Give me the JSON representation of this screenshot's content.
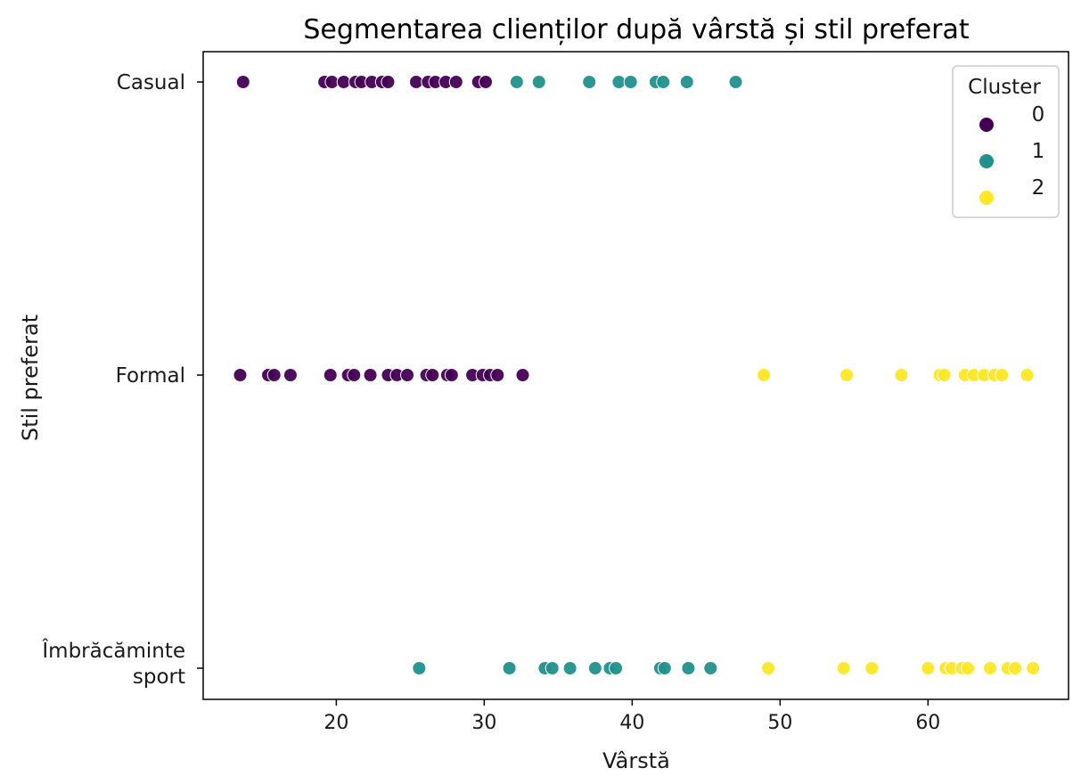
{
  "chart_data": {
    "type": "scatter",
    "title": "Segmentarea clienților după vârstă și stil preferat",
    "xlabel": "Vârstă",
    "ylabel": "Stil preferat",
    "xlim": [
      11,
      69.5
    ],
    "x_ticks": [
      20,
      30,
      40,
      50,
      60
    ],
    "categories": [
      "Casual",
      "Formal",
      "Îmbrăcăminte sport"
    ],
    "grid": false,
    "legend": {
      "title": "Cluster",
      "placement": "top-right"
    },
    "series": [
      {
        "name": "0",
        "color": "#440154",
        "points": [
          {
            "x": 13.7,
            "y": "Casual"
          },
          {
            "x": 19.2,
            "y": "Casual"
          },
          {
            "x": 19.7,
            "y": "Casual"
          },
          {
            "x": 20.5,
            "y": "Casual"
          },
          {
            "x": 21.3,
            "y": "Casual"
          },
          {
            "x": 21.7,
            "y": "Casual"
          },
          {
            "x": 22.4,
            "y": "Casual"
          },
          {
            "x": 23.1,
            "y": "Casual"
          },
          {
            "x": 23.5,
            "y": "Casual"
          },
          {
            "x": 25.4,
            "y": "Casual"
          },
          {
            "x": 26.2,
            "y": "Casual"
          },
          {
            "x": 26.7,
            "y": "Casual"
          },
          {
            "x": 27.4,
            "y": "Casual"
          },
          {
            "x": 28.1,
            "y": "Casual"
          },
          {
            "x": 29.6,
            "y": "Casual"
          },
          {
            "x": 30.1,
            "y": "Casual"
          },
          {
            "x": 13.5,
            "y": "Formal"
          },
          {
            "x": 15.4,
            "y": "Formal"
          },
          {
            "x": 15.8,
            "y": "Formal"
          },
          {
            "x": 16.9,
            "y": "Formal"
          },
          {
            "x": 19.6,
            "y": "Formal"
          },
          {
            "x": 20.8,
            "y": "Formal"
          },
          {
            "x": 21.2,
            "y": "Formal"
          },
          {
            "x": 22.3,
            "y": "Formal"
          },
          {
            "x": 23.5,
            "y": "Formal"
          },
          {
            "x": 24.1,
            "y": "Formal"
          },
          {
            "x": 24.8,
            "y": "Formal"
          },
          {
            "x": 26.1,
            "y": "Formal"
          },
          {
            "x": 26.5,
            "y": "Formal"
          },
          {
            "x": 27.5,
            "y": "Formal"
          },
          {
            "x": 27.8,
            "y": "Formal"
          },
          {
            "x": 29.2,
            "y": "Formal"
          },
          {
            "x": 29.9,
            "y": "Formal"
          },
          {
            "x": 30.4,
            "y": "Formal"
          },
          {
            "x": 30.9,
            "y": "Formal"
          },
          {
            "x": 32.6,
            "y": "Formal"
          }
        ]
      },
      {
        "name": "1",
        "color": "#21918c",
        "points": [
          {
            "x": 32.2,
            "y": "Casual"
          },
          {
            "x": 33.7,
            "y": "Casual"
          },
          {
            "x": 37.1,
            "y": "Casual"
          },
          {
            "x": 39.1,
            "y": "Casual"
          },
          {
            "x": 39.9,
            "y": "Casual"
          },
          {
            "x": 41.6,
            "y": "Casual"
          },
          {
            "x": 42.1,
            "y": "Casual"
          },
          {
            "x": 43.7,
            "y": "Casual"
          },
          {
            "x": 47.0,
            "y": "Casual"
          },
          {
            "x": 25.6,
            "y": "Îmbrăcăminte sport"
          },
          {
            "x": 31.7,
            "y": "Îmbrăcăminte sport"
          },
          {
            "x": 34.1,
            "y": "Îmbrăcăminte sport"
          },
          {
            "x": 34.6,
            "y": "Îmbrăcăminte sport"
          },
          {
            "x": 35.8,
            "y": "Îmbrăcăminte sport"
          },
          {
            "x": 37.5,
            "y": "Îmbrăcăminte sport"
          },
          {
            "x": 38.5,
            "y": "Îmbrăcăminte sport"
          },
          {
            "x": 38.9,
            "y": "Îmbrăcăminte sport"
          },
          {
            "x": 41.9,
            "y": "Îmbrăcăminte sport"
          },
          {
            "x": 42.2,
            "y": "Îmbrăcăminte sport"
          },
          {
            "x": 43.8,
            "y": "Îmbrăcăminte sport"
          },
          {
            "x": 45.3,
            "y": "Îmbrăcăminte sport"
          }
        ]
      },
      {
        "name": "2",
        "color": "#fde725",
        "points": [
          {
            "x": 48.9,
            "y": "Formal"
          },
          {
            "x": 54.5,
            "y": "Formal"
          },
          {
            "x": 58.2,
            "y": "Formal"
          },
          {
            "x": 60.8,
            "y": "Formal"
          },
          {
            "x": 61.1,
            "y": "Formal"
          },
          {
            "x": 62.5,
            "y": "Formal"
          },
          {
            "x": 63.1,
            "y": "Formal"
          },
          {
            "x": 63.8,
            "y": "Formal"
          },
          {
            "x": 64.5,
            "y": "Formal"
          },
          {
            "x": 65.0,
            "y": "Formal"
          },
          {
            "x": 66.7,
            "y": "Formal"
          },
          {
            "x": 49.2,
            "y": "Îmbrăcăminte sport"
          },
          {
            "x": 54.3,
            "y": "Îmbrăcăminte sport"
          },
          {
            "x": 56.2,
            "y": "Îmbrăcăminte sport"
          },
          {
            "x": 60.0,
            "y": "Îmbrăcăminte sport"
          },
          {
            "x": 61.2,
            "y": "Îmbrăcăminte sport"
          },
          {
            "x": 61.6,
            "y": "Îmbrăcăminte sport"
          },
          {
            "x": 62.3,
            "y": "Îmbrăcăminte sport"
          },
          {
            "x": 62.7,
            "y": "Îmbrăcăminte sport"
          },
          {
            "x": 64.2,
            "y": "Îmbrăcăminte sport"
          },
          {
            "x": 65.4,
            "y": "Îmbrăcăminte sport"
          },
          {
            "x": 65.9,
            "y": "Îmbrăcăminte sport"
          },
          {
            "x": 67.1,
            "y": "Îmbrăcăminte sport"
          }
        ]
      }
    ]
  }
}
